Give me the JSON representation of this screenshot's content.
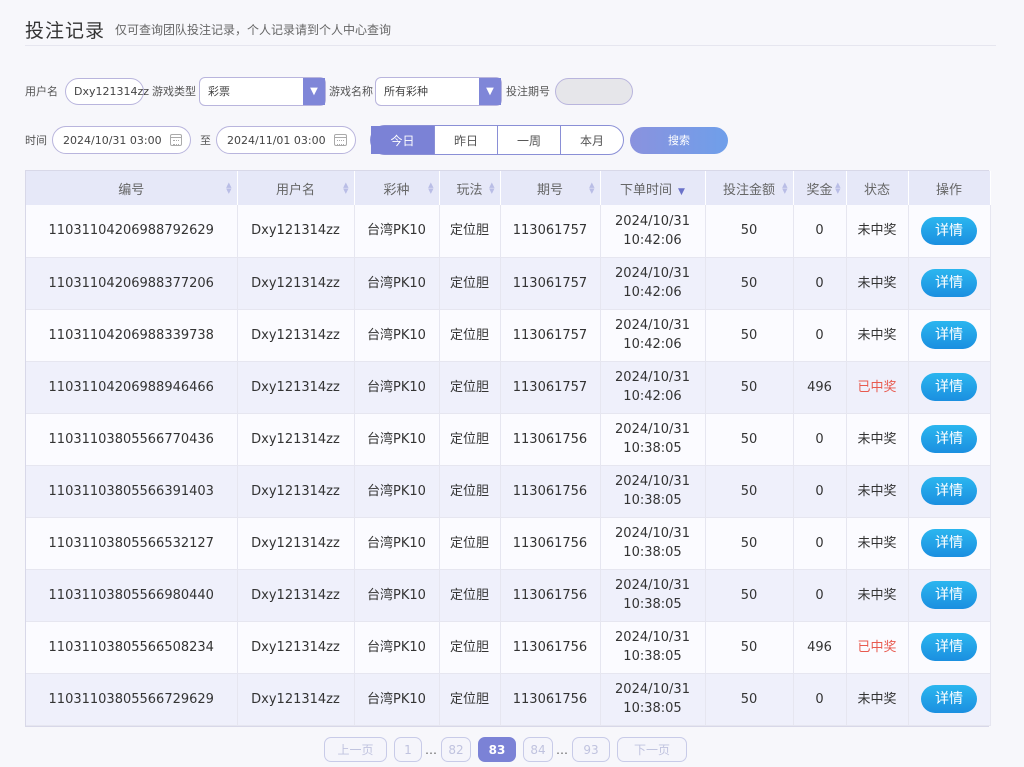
{
  "header": {
    "title": "投注记录",
    "subtitle": "仅可查询团队投注记录，个人记录请到个人中心查询"
  },
  "filters": {
    "username_label": "用户名",
    "username_value": "Dxy121314zz",
    "game_type_label": "游戏类型",
    "game_type_value": "彩票",
    "game_name_label": "游戏名称",
    "game_name_value": "所有彩种",
    "issue_label": "投注期号",
    "issue_value": "",
    "time_label": "时间",
    "start_time": "2024/10/31 03:00",
    "to_label": "至",
    "end_time": "2024/11/01 03:00",
    "range_tabs": [
      "今日",
      "昨日",
      "一周",
      "本月"
    ],
    "active_range": "今日",
    "search_label": "搜索"
  },
  "table": {
    "columns": [
      "编号",
      "用户名",
      "彩种",
      "玩法",
      "期号",
      "下单时间",
      "投注金额",
      "奖金",
      "状态",
      "操作"
    ],
    "detail_label": "详情",
    "rows": [
      {
        "id": "11031104206988792629",
        "user": "Dxy121314zz",
        "lottery": "台湾PK10",
        "play": "定位胆",
        "issue": "113061757",
        "date": "2024/10/31",
        "time": "10:42:06",
        "amount": "50",
        "prize": "0",
        "status": "未中奖",
        "won": false
      },
      {
        "id": "11031104206988377206",
        "user": "Dxy121314zz",
        "lottery": "台湾PK10",
        "play": "定位胆",
        "issue": "113061757",
        "date": "2024/10/31",
        "time": "10:42:06",
        "amount": "50",
        "prize": "0",
        "status": "未中奖",
        "won": false
      },
      {
        "id": "11031104206988339738",
        "user": "Dxy121314zz",
        "lottery": "台湾PK10",
        "play": "定位胆",
        "issue": "113061757",
        "date": "2024/10/31",
        "time": "10:42:06",
        "amount": "50",
        "prize": "0",
        "status": "未中奖",
        "won": false
      },
      {
        "id": "11031104206988946466",
        "user": "Dxy121314zz",
        "lottery": "台湾PK10",
        "play": "定位胆",
        "issue": "113061757",
        "date": "2024/10/31",
        "time": "10:42:06",
        "amount": "50",
        "prize": "496",
        "status": "已中奖",
        "won": true
      },
      {
        "id": "11031103805566770436",
        "user": "Dxy121314zz",
        "lottery": "台湾PK10",
        "play": "定位胆",
        "issue": "113061756",
        "date": "2024/10/31",
        "time": "10:38:05",
        "amount": "50",
        "prize": "0",
        "status": "未中奖",
        "won": false
      },
      {
        "id": "11031103805566391403",
        "user": "Dxy121314zz",
        "lottery": "台湾PK10",
        "play": "定位胆",
        "issue": "113061756",
        "date": "2024/10/31",
        "time": "10:38:05",
        "amount": "50",
        "prize": "0",
        "status": "未中奖",
        "won": false
      },
      {
        "id": "11031103805566532127",
        "user": "Dxy121314zz",
        "lottery": "台湾PK10",
        "play": "定位胆",
        "issue": "113061756",
        "date": "2024/10/31",
        "time": "10:38:05",
        "amount": "50",
        "prize": "0",
        "status": "未中奖",
        "won": false
      },
      {
        "id": "11031103805566980440",
        "user": "Dxy121314zz",
        "lottery": "台湾PK10",
        "play": "定位胆",
        "issue": "113061756",
        "date": "2024/10/31",
        "time": "10:38:05",
        "amount": "50",
        "prize": "0",
        "status": "未中奖",
        "won": false
      },
      {
        "id": "11031103805566508234",
        "user": "Dxy121314zz",
        "lottery": "台湾PK10",
        "play": "定位胆",
        "issue": "113061756",
        "date": "2024/10/31",
        "time": "10:38:05",
        "amount": "50",
        "prize": "496",
        "status": "已中奖",
        "won": true
      },
      {
        "id": "11031103805566729629",
        "user": "Dxy121314zz",
        "lottery": "台湾PK10",
        "play": "定位胆",
        "issue": "113061756",
        "date": "2024/10/31",
        "time": "10:38:05",
        "amount": "50",
        "prize": "0",
        "status": "未中奖",
        "won": false
      }
    ]
  },
  "pagination": {
    "prev_label": "上一页",
    "next_label": "下一页",
    "pages": [
      "1",
      "…",
      "82",
      "83",
      "84",
      "…",
      "93"
    ],
    "current": "83"
  }
}
